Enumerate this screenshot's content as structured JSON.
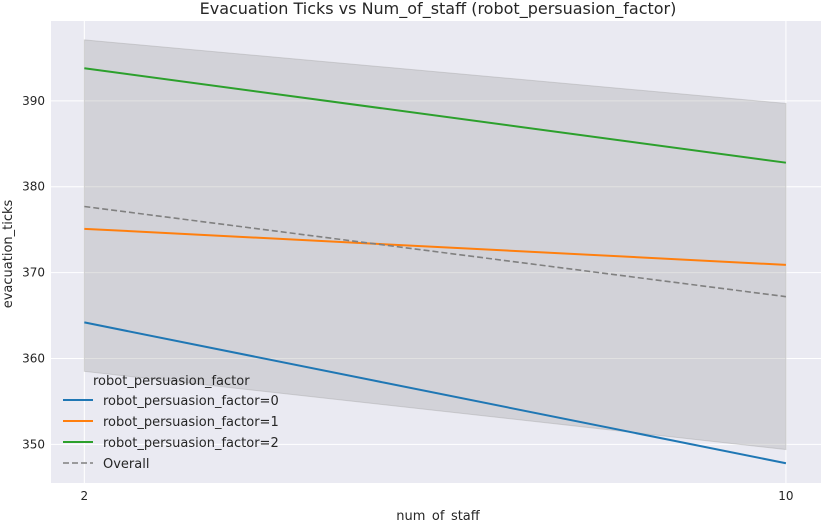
{
  "chart_data": {
    "type": "line",
    "title": "Evacuation Ticks vs Num_of_staff (robot_persuasion_factor)",
    "xlabel": "num_of_staff",
    "ylabel": "evacuation_ticks",
    "x": [
      2,
      10
    ],
    "xticks": [
      2,
      10
    ],
    "xlim": [
      1.62,
      10.4
    ],
    "yticks": [
      350,
      360,
      370,
      380,
      390
    ],
    "ylim": [
      345.5,
      399.3
    ],
    "grid": true,
    "background": "#eaeaf2",
    "legend": {
      "title": "robot_persuasion_factor",
      "placement": "lower-left"
    },
    "series": [
      {
        "name": "robot_persuasion_factor=0",
        "values": [
          364.2,
          347.8
        ],
        "color": "#1f77b4",
        "dash": "solid"
      },
      {
        "name": "robot_persuasion_factor=1",
        "values": [
          375.1,
          370.9
        ],
        "color": "#ff7f0e",
        "dash": "solid"
      },
      {
        "name": "robot_persuasion_factor=2",
        "values": [
          393.8,
          382.8
        ],
        "color": "#2ca02c",
        "dash": "solid"
      },
      {
        "name": "Overall",
        "values": [
          377.7,
          367.2
        ],
        "color": "#808080",
        "dash": "dashed"
      }
    ],
    "band": {
      "upper": [
        397.1,
        389.7
      ],
      "lower": [
        358.5,
        349.4
      ],
      "color": "#9a9a9a"
    }
  }
}
